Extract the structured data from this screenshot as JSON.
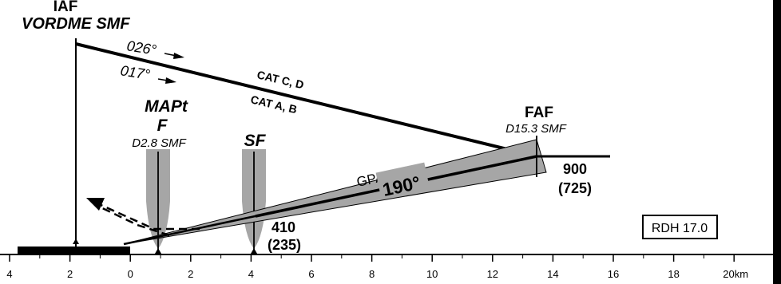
{
  "iaf": {
    "title": "IAF",
    "name": "VORDME SMF"
  },
  "courses": {
    "cd": "026°",
    "ab": "017°"
  },
  "categories": {
    "cd": "CAT C, D",
    "ab": "CAT A, B"
  },
  "mapt": {
    "title": "MAPt",
    "fix": "F",
    "distance": "D2.8 SMF"
  },
  "sf": {
    "title": "SF"
  },
  "faf": {
    "title": "FAF",
    "distance": "D15.3 SMF",
    "altitude": "900",
    "height": "(725)"
  },
  "glidepath": {
    "gpa": "GPA 3°00'",
    "track": "190°"
  },
  "sf_alt": {
    "altitude": "410",
    "height": "(235)"
  },
  "rdh": "RDH 17.0",
  "scale": {
    "ticks": [
      "4",
      "2",
      "0",
      "2",
      "4",
      "6",
      "8",
      "10",
      "12",
      "14",
      "16",
      "18",
      "20km"
    ]
  }
}
